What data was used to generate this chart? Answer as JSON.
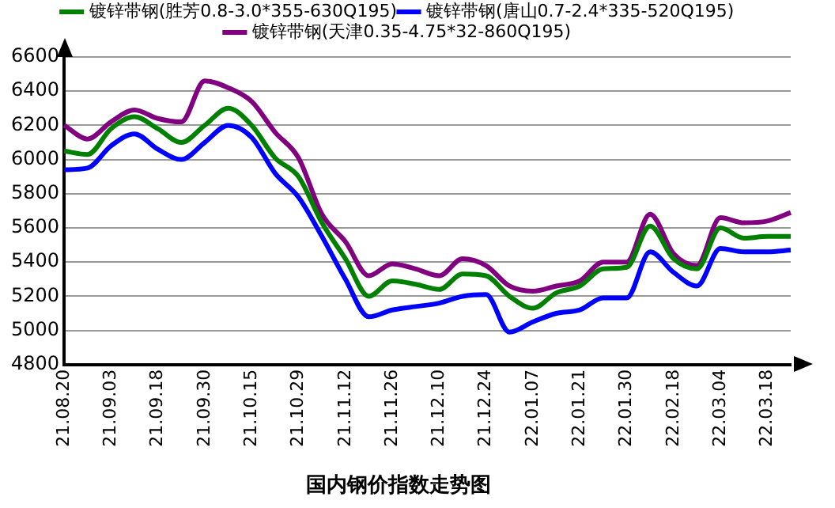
{
  "chart_data": {
    "type": "line",
    "title": "国内钢价指数走势图",
    "categories": [
      "21.08.20",
      null,
      "21.09.03",
      null,
      "21.09.18",
      null,
      "21.09.30",
      null,
      "21.10.15",
      null,
      "21.10.29",
      null,
      "21.11.12",
      null,
      "21.11.26",
      null,
      "21.12.10",
      null,
      "21.12.24",
      null,
      "22.01.07",
      null,
      "22.01.21",
      null,
      "22.01.30",
      null,
      "22.02.18",
      null,
      "22.03.04",
      null,
      "22.03.18",
      null
    ],
    "series": [
      {
        "name": "镀锌带钢(胜芳0.8-3.0*355-630Q195)",
        "color": "#008000",
        "values": [
          6050,
          6030,
          6180,
          6250,
          6180,
          6100,
          6200,
          6300,
          6200,
          6010,
          5900,
          5630,
          5420,
          5200,
          5290,
          5270,
          5240,
          5330,
          5320,
          5200,
          5130,
          5220,
          5260,
          5360,
          5370,
          5610,
          5420,
          5360,
          5600,
          5540,
          5550,
          5550
        ]
      },
      {
        "name": "镀锌带钢(唐山0.7-2.4*335-520Q195)",
        "color": "#0000ff",
        "values": [
          5940,
          5950,
          6080,
          6150,
          6060,
          6000,
          6100,
          6200,
          6130,
          5920,
          5780,
          5550,
          5300,
          5080,
          5120,
          5140,
          5160,
          5200,
          5210,
          4990,
          5050,
          5100,
          5120,
          5190,
          5190,
          5460,
          5340,
          5260,
          5480,
          5460,
          5460,
          5470
        ]
      },
      {
        "name": "镀锌带钢(天津0.35-4.75*32-860Q195)",
        "color": "#800080",
        "values": [
          6200,
          6120,
          6220,
          6290,
          6240,
          6220,
          6460,
          6420,
          6340,
          6160,
          6010,
          5680,
          5520,
          5320,
          5390,
          5360,
          5320,
          5420,
          5380,
          5260,
          5230,
          5260,
          5290,
          5400,
          5400,
          5680,
          5450,
          5380,
          5660,
          5630,
          5640,
          5690
        ]
      }
    ],
    "ylim": [
      4800,
      6600
    ],
    "yticks": [
      4800,
      5000,
      5200,
      5400,
      5600,
      5800,
      6000,
      6200,
      6400,
      6600
    ],
    "grid": true,
    "legend": "top",
    "marker": "none",
    "line_style": "solid"
  }
}
